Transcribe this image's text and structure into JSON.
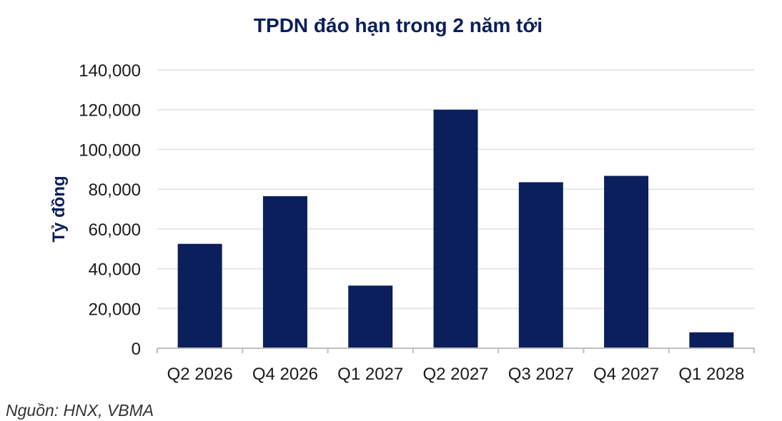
{
  "chart_data": {
    "type": "bar",
    "title": "TPDN đáo hạn trong 2 năm tới",
    "ylabel": "Tỷ đồng",
    "xlabel": "",
    "categories": [
      "Q2 2026",
      "Q4 2026",
      "Q1 2027",
      "Q2 2027",
      "Q3 2027",
      "Q4 2027",
      "Q1 2028"
    ],
    "values": [
      52500,
      76500,
      31500,
      120000,
      83500,
      86700,
      8000
    ],
    "ylim": [
      0,
      140000
    ],
    "yticks": [
      0,
      20000,
      40000,
      60000,
      80000,
      100000,
      120000,
      140000
    ],
    "ytick_labels": [
      "0",
      "20,000",
      "40,000",
      "60,000",
      "80,000",
      "100,000",
      "120,000",
      "140,000"
    ],
    "grid": true,
    "bar_color": "#0b1f5c",
    "grid_color": "#e6e6e6",
    "title_color": "#0b1f5c"
  },
  "source": "Nguồn: HNX, VBMA"
}
